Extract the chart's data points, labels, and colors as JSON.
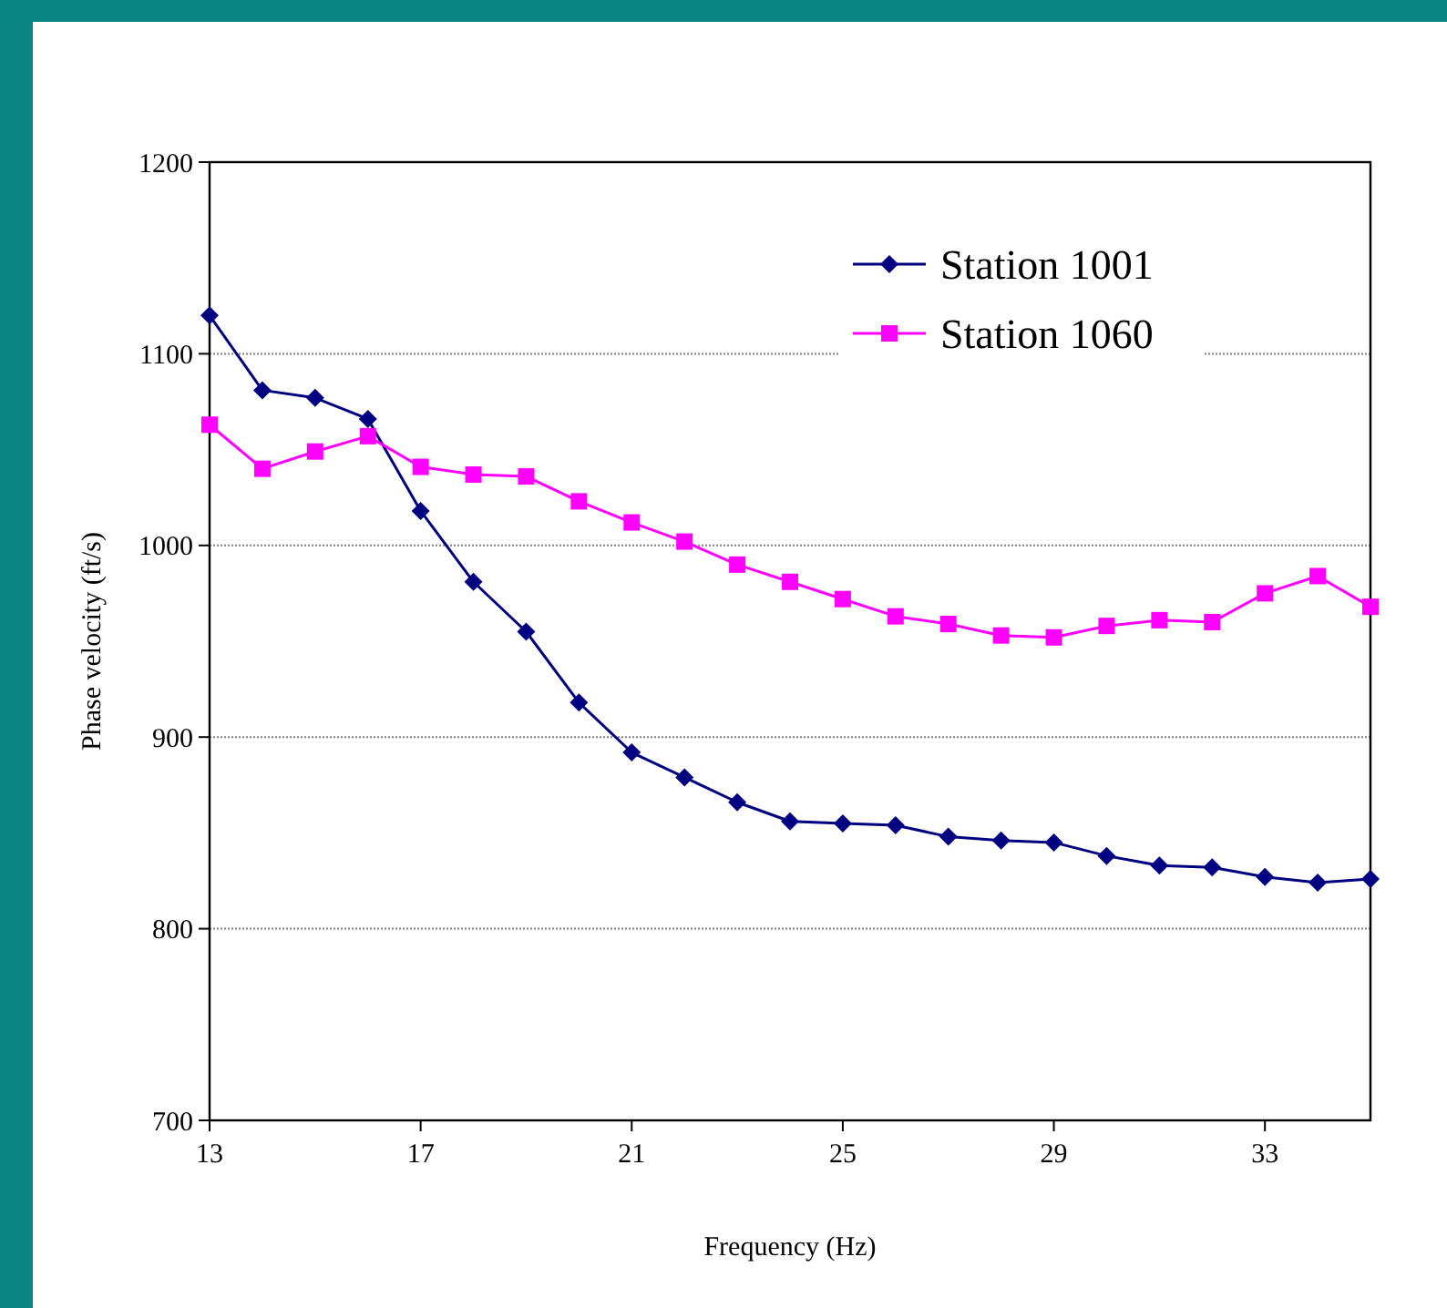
{
  "chart_data": {
    "type": "line",
    "xlabel": "Frequency (Hz)",
    "ylabel": "Phase velocity (ft/s)",
    "x": [
      13,
      14,
      15,
      16,
      17,
      18,
      19,
      20,
      21,
      22,
      23,
      24,
      25,
      26,
      27,
      28,
      29,
      30,
      31,
      32,
      33,
      34,
      35
    ],
    "xlim": [
      13,
      35
    ],
    "xticks": [
      13,
      17,
      21,
      25,
      29,
      33
    ],
    "ylim": [
      700,
      1200
    ],
    "yticks": [
      700,
      800,
      900,
      1000,
      1100,
      1200
    ],
    "grid": "y",
    "legend": "top right",
    "series": [
      {
        "name": "Station 1001",
        "color": "#000080",
        "marker": "diamond",
        "values": [
          1120,
          1081,
          1077,
          1066,
          1018,
          981,
          955,
          918,
          892,
          879,
          866,
          856,
          855,
          854,
          848,
          846,
          845,
          838,
          833,
          832,
          827,
          824,
          826
        ]
      },
      {
        "name": "Station 1060",
        "color": "#ff00ff",
        "marker": "square",
        "values": [
          1063,
          1040,
          1049,
          1057,
          1041,
          1037,
          1036,
          1023,
          1012,
          1002,
          990,
          981,
          972,
          963,
          959,
          953,
          952,
          958,
          961,
          960,
          975,
          984,
          968
        ]
      }
    ]
  }
}
